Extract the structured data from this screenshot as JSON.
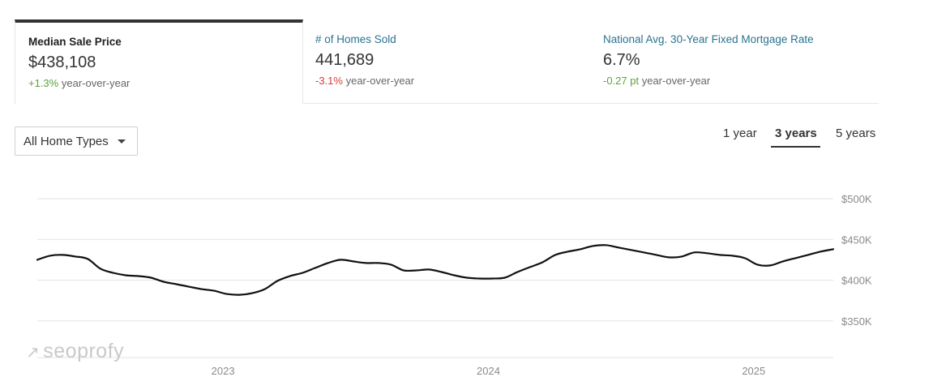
{
  "tabs": [
    {
      "title": "Median Sale Price",
      "value": "$438,108",
      "change": "+1.3%",
      "change_suffix": "year-over-year",
      "change_dir": "pos",
      "active": true
    },
    {
      "title": "# of Homes Sold",
      "value": "441,689",
      "change": "-3.1%",
      "change_suffix": "year-over-year",
      "change_dir": "neg",
      "active": false
    },
    {
      "title": "National Avg. 30-Year Fixed Mortgage Rate",
      "value": "6.7%",
      "change": "-0.27 pt",
      "change_suffix": "year-over-year",
      "change_dir": "pos",
      "active": false
    }
  ],
  "filter": {
    "label": "All Home Types"
  },
  "ranges": [
    {
      "label": "1 year",
      "active": false
    },
    {
      "label": "3 years",
      "active": true
    },
    {
      "label": "5 years",
      "active": false
    }
  ],
  "watermark": "seoprofy",
  "chart_data": {
    "type": "line",
    "title": "Median Sale Price",
    "xlabel": "",
    "ylabel": "",
    "x_start": 2022.3,
    "x_end": 2025.3,
    "xticks": [
      {
        "value": 2023,
        "label": "2023"
      },
      {
        "value": 2024,
        "label": "2024"
      },
      {
        "value": 2025,
        "label": "2025"
      }
    ],
    "yticks": [
      {
        "value": 350000,
        "label": "$350K"
      },
      {
        "value": 400000,
        "label": "$400K"
      },
      {
        "value": 450000,
        "label": "$450K"
      },
      {
        "value": 500000,
        "label": "$500K"
      }
    ],
    "ylim": [
      305000,
      500000
    ],
    "grid": true,
    "series": [
      {
        "name": "Median Sale Price",
        "values": [
          425000,
          430000,
          431000,
          429000,
          426000,
          414000,
          409000,
          406000,
          405000,
          403000,
          398000,
          395000,
          392000,
          389000,
          387000,
          383000,
          382000,
          384000,
          389000,
          399000,
          405000,
          409000,
          415000,
          421000,
          425000,
          423000,
          421000,
          421000,
          419000,
          412000,
          412000,
          413000,
          410000,
          406000,
          403000,
          402000,
          402000,
          403000,
          410000,
          416000,
          422000,
          431000,
          435000,
          438000,
          442000,
          443000,
          440000,
          437000,
          434000,
          431000,
          428000,
          429000,
          434000,
          433000,
          431000,
          430000,
          427000,
          419000,
          418000,
          423000,
          427000,
          431000,
          435000,
          438000
        ]
      }
    ]
  }
}
